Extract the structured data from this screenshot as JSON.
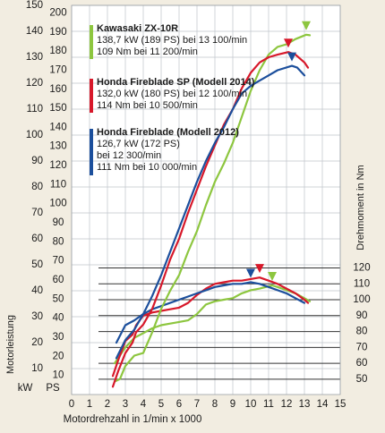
{
  "chart_data": {
    "type": "line",
    "xlabel": "Motordrehzahl in 1/min x 1000",
    "ylabel_left": "Motorleistung",
    "ylabel_right": "Drehmoment in Nm",
    "unit_labels": {
      "kw": "kW",
      "ps": "PS"
    },
    "x_ticks": [
      0,
      1,
      2,
      3,
      4,
      5,
      6,
      7,
      8,
      9,
      10,
      11,
      12,
      13,
      14,
      15
    ],
    "kw_ticks": [
      10,
      20,
      30,
      40,
      50,
      60,
      70,
      80,
      90,
      100,
      110,
      120,
      130,
      140,
      150
    ],
    "ps_ticks": [
      10,
      20,
      30,
      40,
      50,
      60,
      70,
      80,
      90,
      100,
      110,
      120,
      130,
      140,
      150,
      160,
      170,
      180,
      190,
      200
    ],
    "nm_ticks": [
      50,
      60,
      70,
      80,
      90,
      100,
      110,
      120
    ],
    "xlim": [
      0,
      15
    ],
    "ylim_kw": [
      0,
      150
    ],
    "ylim_nm": [
      46,
      120
    ],
    "series": [
      {
        "color": "#8dc63f",
        "legend": [
          "Kawasaki ZX-10R",
          "138,7 kW (189 PS) bei 13 100/min",
          "109 Nm bei 11 200/min"
        ],
        "power_kw": [
          [
            2.4,
            5
          ],
          [
            2.7,
            6
          ],
          [
            3.0,
            11
          ],
          [
            3.5,
            15
          ],
          [
            4.0,
            16
          ],
          [
            4.5,
            24
          ],
          [
            5.0,
            33
          ],
          [
            5.5,
            40
          ],
          [
            6.0,
            46
          ],
          [
            6.5,
            55
          ],
          [
            7.0,
            63
          ],
          [
            7.5,
            73
          ],
          [
            8.0,
            82
          ],
          [
            8.5,
            89
          ],
          [
            9.0,
            97
          ],
          [
            9.5,
            107
          ],
          [
            10.0,
            117
          ],
          [
            10.5,
            125
          ],
          [
            11.0,
            131
          ],
          [
            11.5,
            134
          ],
          [
            12.0,
            135
          ],
          [
            12.5,
            137
          ],
          [
            13.1,
            138.7
          ],
          [
            13.3,
            138.5
          ]
        ],
        "torque_nm": [
          [
            2.4,
            60
          ],
          [
            3.0,
            70
          ],
          [
            3.5,
            76
          ],
          [
            4.0,
            79
          ],
          [
            4.5,
            82
          ],
          [
            5.0,
            84
          ],
          [
            5.5,
            85
          ],
          [
            6.0,
            86
          ],
          [
            6.5,
            87
          ],
          [
            7.0,
            91
          ],
          [
            7.5,
            97
          ],
          [
            8.0,
            99
          ],
          [
            8.5,
            100
          ],
          [
            9.0,
            101
          ],
          [
            9.5,
            104
          ],
          [
            10.0,
            106
          ],
          [
            10.5,
            107
          ],
          [
            11.2,
            109
          ],
          [
            11.5,
            108
          ],
          [
            12.0,
            106
          ],
          [
            12.5,
            104
          ],
          [
            13.0,
            101
          ],
          [
            13.3,
            99
          ]
        ],
        "marker_power": [
          13.1,
          138.7
        ],
        "marker_torque": [
          11.2,
          109
        ]
      },
      {
        "color": "#d7182a",
        "legend": [
          "Honda  Fireblade SP (Modell 2014)",
          "132,0 kW (180 PS) bei 12 100/min",
          "114 Nm bei 10 500/min"
        ],
        "power_kw": [
          [
            2.3,
            3
          ],
          [
            2.6,
            9
          ],
          [
            3.0,
            16
          ],
          [
            3.4,
            20
          ],
          [
            3.6,
            24
          ],
          [
            4.0,
            27
          ],
          [
            4.5,
            33
          ],
          [
            5.0,
            42
          ],
          [
            5.5,
            52
          ],
          [
            6.0,
            60
          ],
          [
            6.5,
            70
          ],
          [
            7.0,
            79
          ],
          [
            7.5,
            88
          ],
          [
            8.0,
            96
          ],
          [
            8.5,
            104
          ],
          [
            9.0,
            110
          ],
          [
            9.5,
            118
          ],
          [
            10.0,
            124
          ],
          [
            10.5,
            128
          ],
          [
            11.0,
            130
          ],
          [
            11.5,
            131
          ],
          [
            12.1,
            132
          ],
          [
            12.5,
            131
          ],
          [
            13.0,
            128
          ],
          [
            13.2,
            126
          ]
        ],
        "torque_nm": [
          [
            2.3,
            52
          ],
          [
            2.6,
            62
          ],
          [
            3.0,
            74
          ],
          [
            3.4,
            78
          ],
          [
            3.6,
            84
          ],
          [
            4.0,
            90
          ],
          [
            4.5,
            92
          ],
          [
            5.0,
            93
          ],
          [
            5.5,
            94
          ],
          [
            6.0,
            95
          ],
          [
            6.5,
            98
          ],
          [
            7.0,
            103
          ],
          [
            7.5,
            107
          ],
          [
            8.0,
            110
          ],
          [
            8.5,
            111
          ],
          [
            9.0,
            112
          ],
          [
            9.5,
            112
          ],
          [
            10.0,
            113
          ],
          [
            10.5,
            114
          ],
          [
            11.0,
            112
          ],
          [
            11.5,
            110
          ],
          [
            12.0,
            107
          ],
          [
            12.5,
            104
          ],
          [
            13.0,
            100
          ],
          [
            13.2,
            98
          ]
        ],
        "marker_power": [
          12.1,
          132.0
        ],
        "marker_torque": [
          10.5,
          114
        ]
      },
      {
        "color": "#1c4f9c",
        "legend": [
          "Honda Fireblade (Modell 2012)",
          "126,7 kW (172 PS)",
          "bei 12 300/min",
          "111 Nm bei 10 000/min"
        ],
        "power_kw": [
          [
            2.5,
            14
          ],
          [
            3.0,
            21
          ],
          [
            3.5,
            25
          ],
          [
            4.0,
            31
          ],
          [
            4.5,
            38
          ],
          [
            5.0,
            46
          ],
          [
            5.5,
            55
          ],
          [
            6.0,
            64
          ],
          [
            6.5,
            73
          ],
          [
            7.0,
            82
          ],
          [
            7.5,
            90
          ],
          [
            8.0,
            97
          ],
          [
            8.5,
            103
          ],
          [
            9.0,
            110
          ],
          [
            9.5,
            116
          ],
          [
            10.0,
            119
          ],
          [
            10.5,
            121
          ],
          [
            11.0,
            123
          ],
          [
            11.5,
            125
          ],
          [
            12.3,
            126.7
          ],
          [
            12.6,
            126
          ],
          [
            13.0,
            123
          ]
        ],
        "torque_nm": [
          [
            2.5,
            73
          ],
          [
            3.0,
            84
          ],
          [
            3.5,
            87
          ],
          [
            4.0,
            91
          ],
          [
            4.5,
            94
          ],
          [
            5.0,
            96
          ],
          [
            5.5,
            98
          ],
          [
            6.0,
            100
          ],
          [
            6.5,
            102
          ],
          [
            7.0,
            104
          ],
          [
            7.5,
            106
          ],
          [
            8.0,
            108
          ],
          [
            8.5,
            109
          ],
          [
            9.0,
            110
          ],
          [
            9.5,
            110
          ],
          [
            10.0,
            111
          ],
          [
            10.5,
            110
          ],
          [
            11.0,
            108
          ],
          [
            11.5,
            106
          ],
          [
            12.0,
            104
          ],
          [
            12.5,
            101
          ],
          [
            13.0,
            98
          ]
        ],
        "marker_power": [
          12.3,
          126.7
        ],
        "marker_torque": [
          10.0,
          111
        ]
      }
    ]
  }
}
